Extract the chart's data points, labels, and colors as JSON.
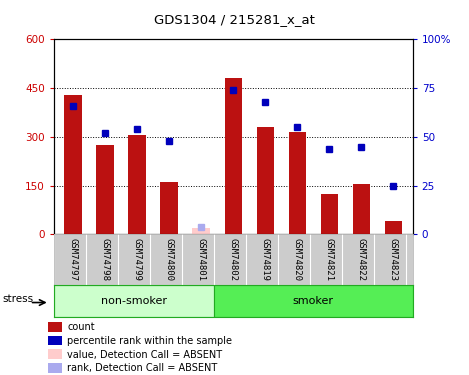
{
  "title": "GDS1304 / 215281_x_at",
  "samples": [
    "GSM74797",
    "GSM74798",
    "GSM74799",
    "GSM74800",
    "GSM74801",
    "GSM74802",
    "GSM74819",
    "GSM74820",
    "GSM74821",
    "GSM74822",
    "GSM74823"
  ],
  "bar_heights": [
    430,
    275,
    305,
    160,
    0,
    480,
    330,
    315,
    125,
    155,
    40
  ],
  "bar_absent": [
    false,
    false,
    false,
    false,
    true,
    false,
    false,
    false,
    false,
    false,
    false
  ],
  "blue_dots_pct": [
    66,
    52,
    54,
    48,
    null,
    74,
    68,
    55,
    44,
    45,
    25
  ],
  "blue_dot_absent": [
    false,
    false,
    false,
    false,
    true,
    false,
    false,
    false,
    false,
    false,
    false
  ],
  "absent_bar_height": 20,
  "absent_blue_dot_pct": 4,
  "stress_label": "stress",
  "ylim_left": [
    0,
    600
  ],
  "ylim_right": [
    0,
    100
  ],
  "yticks_left": [
    0,
    150,
    300,
    450,
    600
  ],
  "yticks_right": [
    0,
    25,
    50,
    75,
    100
  ],
  "ytick_labels_left": [
    "0",
    "150",
    "300",
    "450",
    "600"
  ],
  "ytick_labels_right": [
    "0",
    "25",
    "50",
    "75",
    "100%"
  ],
  "bar_color": "#bb1111",
  "bar_absent_color": "#ffcccc",
  "dot_color": "#0000bb",
  "dot_absent_color": "#aaaaee",
  "nonsmoker_color": "#ccffcc",
  "smoker_color": "#55ee55",
  "group_border_color": "#22aa22",
  "tick_label_area_color": "#cccccc",
  "legend_items": [
    {
      "label": "count",
      "color": "#bb1111"
    },
    {
      "label": "percentile rank within the sample",
      "color": "#0000bb"
    },
    {
      "label": "value, Detection Call = ABSENT",
      "color": "#ffcccc"
    },
    {
      "label": "rank, Detection Call = ABSENT",
      "color": "#aaaaee"
    }
  ],
  "figsize": [
    4.69,
    3.75
  ],
  "dpi": 100
}
